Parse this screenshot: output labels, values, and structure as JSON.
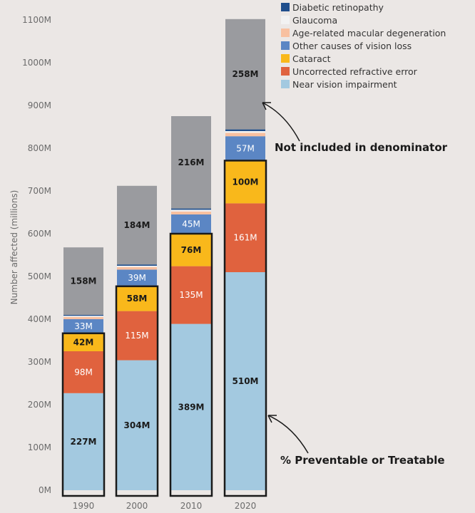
{
  "chart_data": {
    "type": "bar",
    "stacked": true,
    "categories": [
      "1990",
      "2000",
      "2010",
      "2020"
    ],
    "ylabel": "Number affected (millions)",
    "ylim": [
      0,
      1100
    ],
    "yticks": [
      0,
      100,
      200,
      300,
      400,
      500,
      600,
      700,
      800,
      900,
      1000,
      1100
    ],
    "ytick_labels": [
      "0M",
      "100M",
      "200M",
      "300M",
      "400M",
      "500M",
      "600M",
      "700M",
      "800M",
      "900M",
      "1000M",
      "1100M"
    ],
    "series": [
      {
        "name": "Near vision impairment",
        "color": "#a3c9e0",
        "values": [
          227,
          304,
          389,
          510
        ],
        "labels": [
          "227M",
          "304M",
          "389M",
          "510M"
        ],
        "label_color": "dark"
      },
      {
        "name": "Uncorrected refractive error",
        "color": "#e0623e",
        "values": [
          98,
          115,
          135,
          161
        ],
        "labels": [
          "98M",
          "115M",
          "135M",
          "161M"
        ],
        "label_color": "light"
      },
      {
        "name": "Cataract",
        "color": "#f9b81b",
        "values": [
          42,
          58,
          76,
          100
        ],
        "labels": [
          "42M",
          "58M",
          "76M",
          "100M"
        ],
        "label_color": "dark"
      },
      {
        "name": "Other causes of vision loss",
        "color": "#5b86c4",
        "values": [
          33,
          39,
          45,
          57
        ],
        "labels": [
          "33M",
          "39M",
          "45M",
          "57M"
        ],
        "label_color": "light"
      },
      {
        "name": "Age-related macular degeneration",
        "color": "#f8c0a0",
        "values": [
          5,
          6,
          7,
          8
        ],
        "labels": [
          "",
          "",
          "",
          ""
        ],
        "label_color": "dark"
      },
      {
        "name": "Glaucoma",
        "color": "#f2f2f2",
        "values": [
          3,
          3,
          4,
          4
        ],
        "labels": [
          "",
          "",
          "",
          ""
        ],
        "label_color": "dark"
      },
      {
        "name": "Diabetic retinopathy",
        "color": "#1f4e8c",
        "values": [
          2,
          3,
          3,
          4
        ],
        "labels": [
          "",
          "",
          "",
          ""
        ],
        "label_color": "dark"
      },
      {
        "name": "",
        "color": "#9a9b9f",
        "values": [
          158,
          184,
          216,
          258
        ],
        "labels": [
          "158M",
          "184M",
          "216M",
          "258M"
        ],
        "label_color": "dark"
      }
    ],
    "legend": {
      "placement": "top-right",
      "entries": [
        {
          "name": "Diabetic retinopathy",
          "color": "#1f4e8c"
        },
        {
          "name": "Glaucoma",
          "color": "#f2f2f2"
        },
        {
          "name": "Age-related macular degeneration",
          "color": "#f8c0a0"
        },
        {
          "name": "Other causes of vision loss",
          "color": "#5b86c4"
        },
        {
          "name": "Cataract",
          "color": "#f9b81b"
        },
        {
          "name": "Uncorrected refractive error",
          "color": "#e0623e"
        },
        {
          "name": "Near vision impairment",
          "color": "#a3c9e0"
        }
      ]
    },
    "highlight_series_count": 3,
    "annotations": {
      "top": "Not included in denominator",
      "bottom": "% Preventable or Treatable"
    },
    "grid": false
  }
}
